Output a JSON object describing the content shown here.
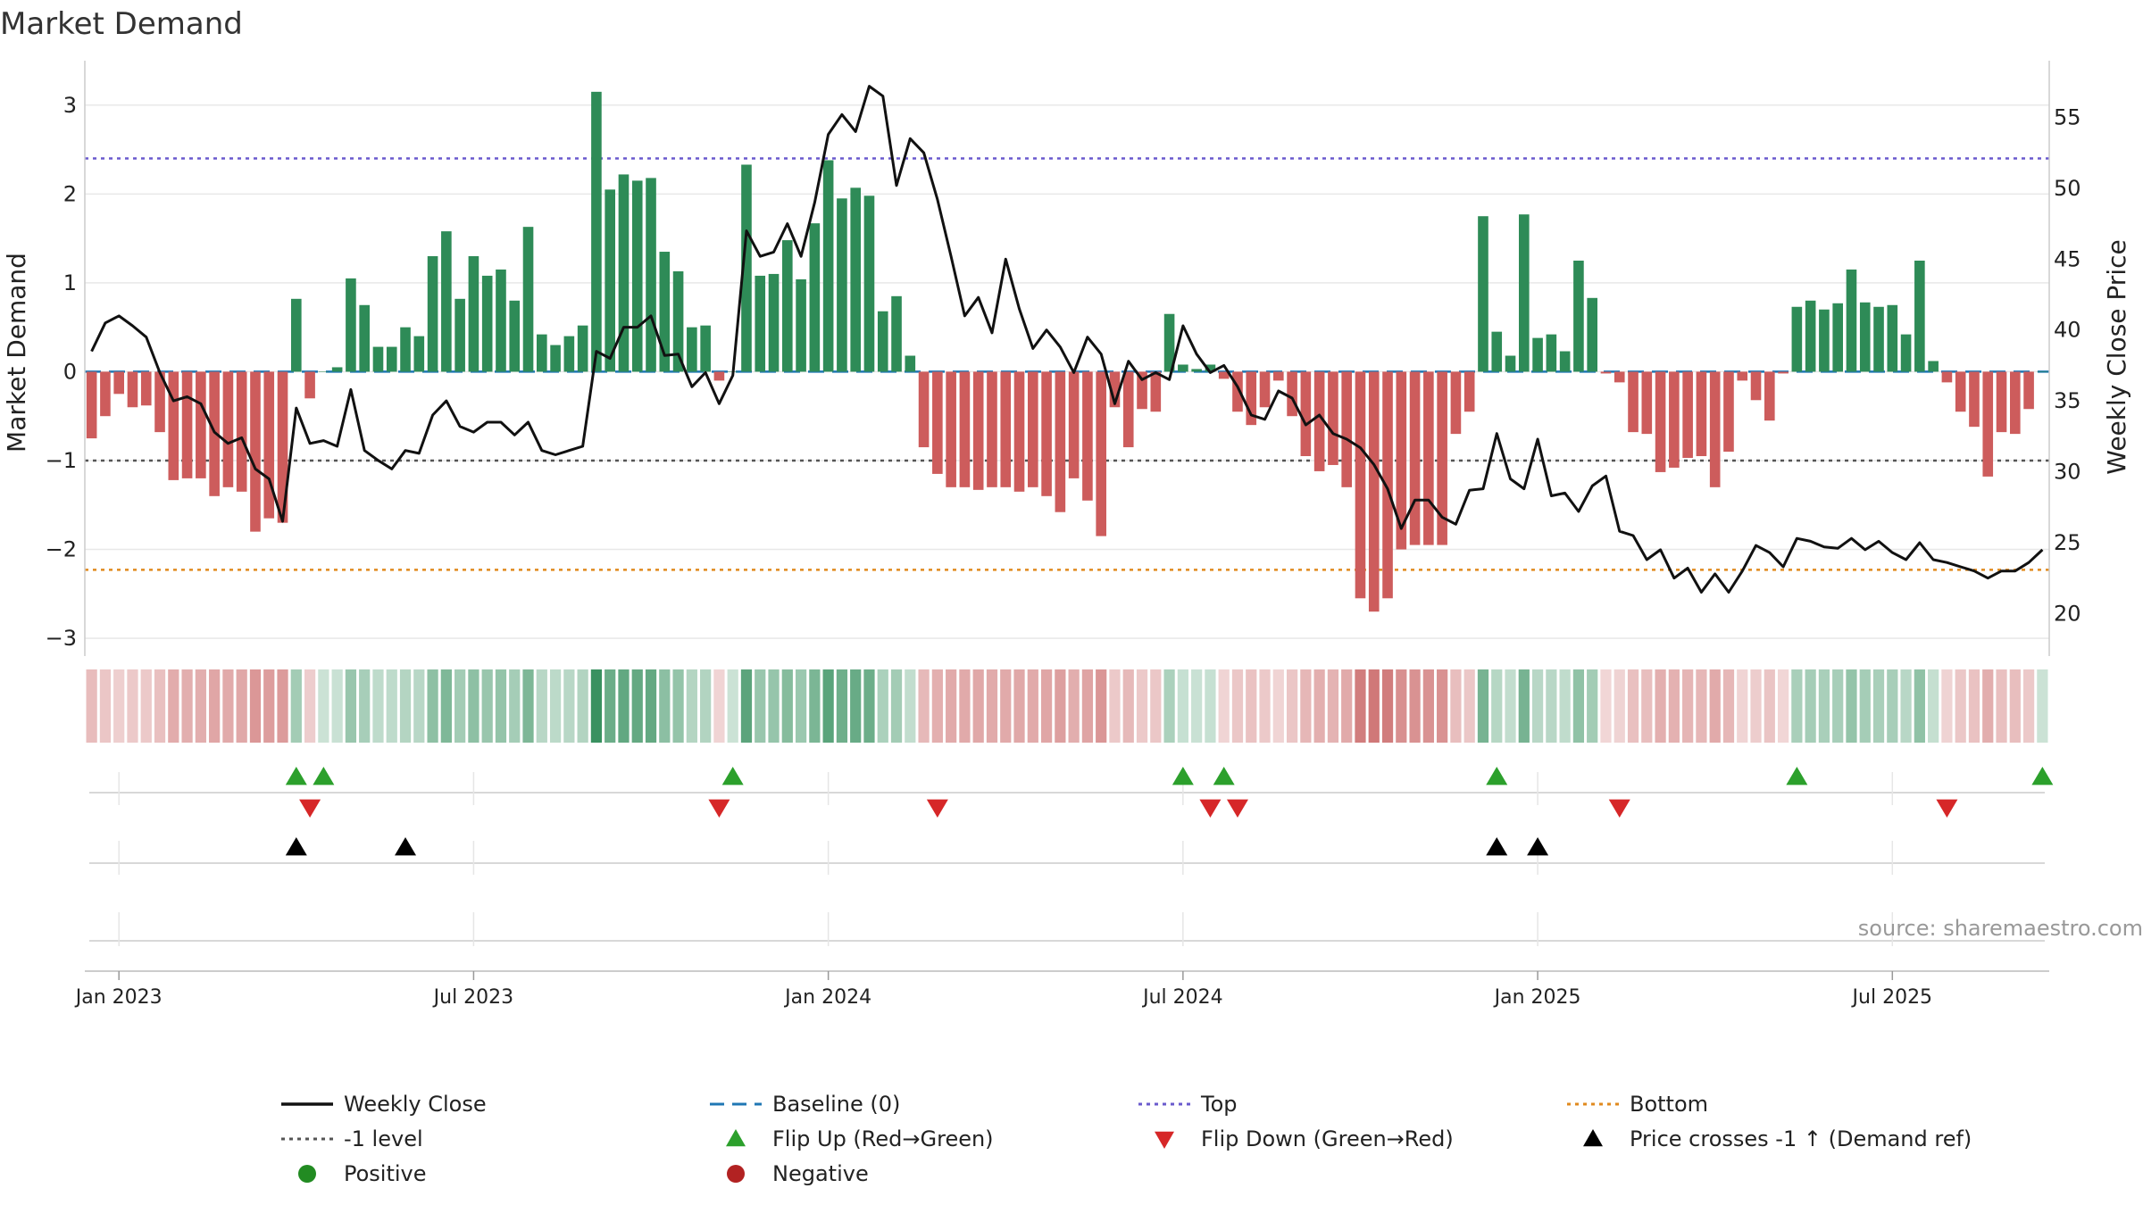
{
  "chart_data": {
    "type": "bar",
    "title": "Market Demand",
    "ylabel": "Market Demand",
    "y2label": "Weekly Close Price",
    "ylim": [
      -3.2,
      3.5
    ],
    "y2lim": [
      17,
      59
    ],
    "yticks": [
      3,
      2,
      1,
      0,
      -1,
      -2,
      -3
    ],
    "y2ticks": [
      55,
      50,
      45,
      40,
      35,
      30,
      25,
      20
    ],
    "ytick_labels": [
      "3",
      "2",
      "1",
      "0",
      "−1",
      "−2",
      "−3"
    ],
    "y2tick_labels": [
      "55",
      "50",
      "45",
      "40",
      "35",
      "30",
      "25",
      "20"
    ],
    "levels": {
      "top": 2.4,
      "minus_one": -1,
      "bottom": -2.23,
      "baseline": 0
    },
    "x_start_week": -2,
    "weeks": 146,
    "xtick_weeks": [
      0,
      26,
      52,
      78,
      104,
      130
    ],
    "xtick_labels": [
      "Jan 2023",
      "Jul 2023",
      "Jan 2024",
      "Jul 2024",
      "Jan 2025",
      "Jul 2025"
    ],
    "demand": [
      -0.75,
      -0.5,
      -0.25,
      -0.4,
      -0.38,
      -0.68,
      -1.22,
      -1.2,
      -1.2,
      -1.4,
      -1.3,
      -1.35,
      -1.8,
      -1.65,
      -1.7,
      0.82,
      -0.3,
      0.0,
      0.05,
      1.05,
      0.75,
      0.28,
      0.28,
      0.5,
      0.4,
      1.3,
      1.58,
      0.82,
      1.3,
      1.08,
      1.15,
      0.8,
      1.63,
      0.42,
      0.3,
      0.4,
      0.52,
      3.15,
      2.05,
      2.22,
      2.15,
      2.18,
      1.35,
      1.13,
      0.5,
      0.52,
      -0.1,
      0.0,
      2.33,
      1.08,
      1.1,
      1.48,
      1.04,
      1.67,
      2.38,
      1.95,
      2.07,
      1.98,
      0.68,
      0.85,
      0.18,
      -0.85,
      -1.15,
      -1.3,
      -1.3,
      -1.33,
      -1.3,
      -1.3,
      -1.35,
      -1.3,
      -1.4,
      -1.58,
      -1.2,
      -1.45,
      -1.85,
      -0.4,
      -0.85,
      -0.42,
      -0.45,
      0.65,
      0.08,
      0.03,
      0.08,
      -0.08,
      -0.45,
      -0.6,
      -0.4,
      -0.1,
      -0.5,
      -0.95,
      -1.12,
      -1.05,
      -1.3,
      -2.55,
      -2.7,
      -2.55,
      -2.0,
      -1.95,
      -1.95,
      -1.95,
      -0.7,
      -0.45,
      1.75,
      0.45,
      0.18,
      1.77,
      0.38,
      0.42,
      0.23,
      1.25,
      0.83,
      -0.02,
      -0.12,
      -0.68,
      -0.7,
      -1.13,
      -1.08,
      -0.97,
      -0.95,
      -1.3,
      -0.9,
      -0.1,
      -0.32,
      -0.55,
      -0.02,
      0.73,
      0.8,
      0.7,
      0.77,
      1.15,
      0.78,
      0.73,
      0.75,
      0.42,
      1.25,
      0.12,
      -0.12,
      -0.45,
      -0.62,
      -1.18,
      -0.68,
      -0.7,
      -0.42,
      0.0
    ],
    "price": [
      38.5,
      40.5,
      41,
      40.3,
      39.5,
      37,
      35,
      35.3,
      34.8,
      32.8,
      32,
      32.4,
      30.2,
      29.5,
      26.5,
      34.5,
      32,
      32.2,
      31.8,
      35.8,
      31.5,
      30.8,
      30.2,
      31.5,
      31.3,
      34,
      35,
      33.2,
      32.8,
      33.5,
      33.5,
      32.6,
      33.5,
      31.5,
      31.2,
      31.5,
      31.8,
      38.5,
      38,
      40.2,
      40.2,
      41,
      38.2,
      38.3,
      36,
      37,
      34.8,
      36.8,
      47,
      45.2,
      45.5,
      47.5,
      45.2,
      49,
      53.8,
      55.2,
      54,
      57.2,
      56.5,
      50.2,
      53.5,
      52.5,
      49.2,
      45.2,
      41,
      42.3,
      39.8,
      45,
      41.5,
      38.7,
      40,
      38.8,
      37,
      39.5,
      38.3,
      34.8,
      37.8,
      36.5,
      37,
      36.5,
      40.3,
      38.3,
      37,
      37.5,
      36,
      34,
      33.7,
      35.7,
      35.2,
      33.3,
      34,
      32.7,
      32.3,
      31.7,
      30.5,
      28.8,
      26,
      28,
      28,
      26.8,
      26.3,
      28.7,
      28.8,
      32.7,
      29.5,
      28.8,
      32.3,
      28.3,
      28.5,
      27.2,
      29,
      29.7,
      25.8,
      25.5,
      23.8,
      24.5,
      22.5,
      23.2,
      21.5,
      22.8,
      21.5,
      23,
      24.8,
      24.3,
      23.3,
      25.3,
      25.1,
      24.7,
      24.6,
      25.3,
      24.5,
      25.1,
      24.3,
      23.8,
      25,
      23.8,
      23.6,
      23.3,
      23,
      22.5,
      23,
      23,
      23.6,
      24.5
    ],
    "flip_up_weeks": [
      13,
      15,
      45,
      78,
      81,
      101,
      123,
      141
    ],
    "flip_down_weeks": [
      14,
      44,
      60,
      80,
      82,
      110,
      134
    ],
    "price_cross_weeks": [
      13,
      21,
      101,
      104
    ],
    "series": [
      {
        "name": "Weekly Close",
        "color": "#111111"
      },
      {
        "name": "Baseline (0)",
        "color": "#1f77b4"
      },
      {
        "name": "Top",
        "color": "#6a5acd"
      },
      {
        "name": "Bottom",
        "color": "#e08a1e"
      },
      {
        "name": "-1 level",
        "color": "#555555"
      },
      {
        "name": "Flip Up (Red→Green)",
        "color": "#2ca02c"
      },
      {
        "name": "Flip Down (Green→Red)",
        "color": "#d62728"
      },
      {
        "name": "Price crosses -1 ↑ (Demand ref)",
        "color": "#000000"
      },
      {
        "name": "Positive",
        "color": "#228b22"
      },
      {
        "name": "Negative",
        "color": "#b22222"
      }
    ],
    "legend_position": "bottom",
    "source": "source: sharemaestro.com"
  },
  "colors": {
    "positive_bar": "#2e8b57",
    "negative_bar": "#cd5c5c",
    "grid": "#e8e8e8",
    "axis": "#cccccc"
  }
}
